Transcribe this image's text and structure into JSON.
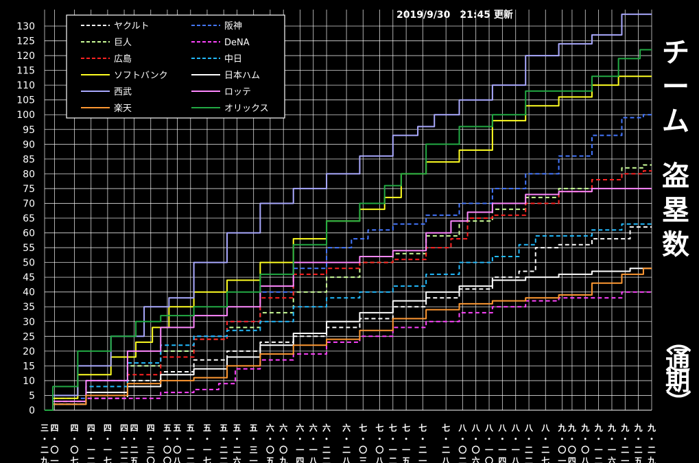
{
  "updated": "2019/9/30　21:45 更新",
  "title_chars": [
    "チ",
    "ー",
    "ム",
    "盗",
    "塁",
    "数"
  ],
  "subtitle_chars": [
    "（",
    "通",
    "期",
    "）"
  ],
  "colors": {
    "background": "#000000",
    "grid": "#ffffff",
    "axis": "#ffffff"
  },
  "chart_data": {
    "type": "line",
    "ylim": [
      0,
      130
    ],
    "yticks": [
      0,
      5,
      10,
      15,
      20,
      25,
      30,
      35,
      40,
      45,
      50,
      55,
      60,
      65,
      70,
      75,
      80,
      85,
      90,
      95,
      100,
      105,
      110,
      115,
      120,
      125,
      130
    ],
    "xlim": [
      0,
      183
    ],
    "xticks": [
      {
        "label": "三・二九",
        "x": 0
      },
      {
        "label": "四・〇一",
        "x": 3
      },
      {
        "label": "四・〇七",
        "x": 9
      },
      {
        "label": "四・一二",
        "x": 14
      },
      {
        "label": "四・一七",
        "x": 19
      },
      {
        "label": "四・二二",
        "x": 24
      },
      {
        "label": "四・二五",
        "x": 27
      },
      {
        "label": "四・三〇",
        "x": 32
      },
      {
        "label": "五・〇〇",
        "x": 37
      },
      {
        "label": "五・〇八",
        "x": 40
      },
      {
        "label": "五・一二",
        "x": 44
      },
      {
        "label": "五・一七",
        "x": 49
      },
      {
        "label": "五・二二",
        "x": 54
      },
      {
        "label": "五・二六",
        "x": 58
      },
      {
        "label": "五・三一",
        "x": 63
      },
      {
        "label": "六・〇五",
        "x": 68
      },
      {
        "label": "六・〇九",
        "x": 72
      },
      {
        "label": "六・一四",
        "x": 77
      },
      {
        "label": "六・一八",
        "x": 81
      },
      {
        "label": "六・二二",
        "x": 85
      },
      {
        "label": "六・二八",
        "x": 91
      },
      {
        "label": "七・〇三",
        "x": 96
      },
      {
        "label": "七・〇八",
        "x": 101
      },
      {
        "label": "七・一二",
        "x": 105
      },
      {
        "label": "七・一五",
        "x": 109
      },
      {
        "label": "七・二一",
        "x": 114
      },
      {
        "label": "七・二八",
        "x": 121
      },
      {
        "label": "八・〇二",
        "x": 126
      },
      {
        "label": "八・〇六",
        "x": 130
      },
      {
        "label": "八・一〇",
        "x": 134
      },
      {
        "label": "八・一四",
        "x": 138
      },
      {
        "label": "八・一八",
        "x": 142
      },
      {
        "label": "八・二二",
        "x": 146
      },
      {
        "label": "八・二七",
        "x": 151
      },
      {
        "label": "九・〇一",
        "x": 156
      },
      {
        "label": "九・〇四",
        "x": 159
      },
      {
        "label": "九・〇八",
        "x": 163
      },
      {
        "label": "九・一二",
        "x": 167
      },
      {
        "label": "九・一六",
        "x": 171
      },
      {
        "label": "九・二一",
        "x": 175
      },
      {
        "label": "九・二五",
        "x": 179
      },
      {
        "label": "九・二九",
        "x": 183
      }
    ],
    "legend_placement": "top-left",
    "series": [
      {
        "name": "ヤクルト",
        "color": "#ffffff",
        "dash": true,
        "points": [
          [
            0,
            0
          ],
          [
            5,
            2
          ],
          [
            20,
            4
          ],
          [
            30,
            10
          ],
          [
            40,
            13
          ],
          [
            50,
            17
          ],
          [
            60,
            20
          ],
          [
            70,
            23
          ],
          [
            80,
            25
          ],
          [
            90,
            28
          ],
          [
            100,
            31
          ],
          [
            110,
            35
          ],
          [
            120,
            38
          ],
          [
            130,
            41
          ],
          [
            140,
            45
          ],
          [
            146,
            47
          ],
          [
            150,
            55
          ],
          [
            160,
            56
          ],
          [
            170,
            58
          ],
          [
            183,
            62
          ]
        ]
      },
      {
        "name": "阪神",
        "color": "#4477ff",
        "dash": true,
        "points": [
          [
            0,
            0
          ],
          [
            5,
            4
          ],
          [
            20,
            10
          ],
          [
            30,
            15
          ],
          [
            40,
            20
          ],
          [
            50,
            25
          ],
          [
            60,
            30
          ],
          [
            70,
            40
          ],
          [
            80,
            48
          ],
          [
            90,
            55
          ],
          [
            95,
            58
          ],
          [
            100,
            61
          ],
          [
            110,
            63
          ],
          [
            120,
            66
          ],
          [
            130,
            70
          ],
          [
            140,
            75
          ],
          [
            150,
            80
          ],
          [
            160,
            86
          ],
          [
            170,
            93
          ],
          [
            178,
            99
          ],
          [
            183,
            100
          ]
        ]
      },
      {
        "name": "巨人",
        "color": "#ccff99",
        "dash": true,
        "points": [
          [
            0,
            0
          ],
          [
            5,
            3
          ],
          [
            20,
            8
          ],
          [
            30,
            15
          ],
          [
            40,
            20
          ],
          [
            50,
            24
          ],
          [
            60,
            28
          ],
          [
            70,
            33
          ],
          [
            80,
            40
          ],
          [
            90,
            45
          ],
          [
            100,
            50
          ],
          [
            110,
            53
          ],
          [
            120,
            59
          ],
          [
            130,
            64
          ],
          [
            140,
            68
          ],
          [
            150,
            72
          ],
          [
            160,
            75
          ],
          [
            170,
            78
          ],
          [
            178,
            82
          ],
          [
            183,
            83
          ]
        ]
      },
      {
        "name": "DeNA",
        "color": "#ff44ff",
        "dash": true,
        "points": [
          [
            0,
            0
          ],
          [
            5,
            2
          ],
          [
            20,
            4
          ],
          [
            30,
            4
          ],
          [
            40,
            6
          ],
          [
            50,
            7
          ],
          [
            55,
            9
          ],
          [
            60,
            14
          ],
          [
            70,
            17
          ],
          [
            80,
            19
          ],
          [
            90,
            23
          ],
          [
            100,
            25
          ],
          [
            110,
            28
          ],
          [
            120,
            30
          ],
          [
            130,
            33
          ],
          [
            140,
            35
          ],
          [
            150,
            37
          ],
          [
            160,
            38
          ],
          [
            170,
            38
          ],
          [
            178,
            40
          ],
          [
            183,
            40
          ]
        ]
      },
      {
        "name": "広島",
        "color": "#ff2222",
        "dash": true,
        "points": [
          [
            0,
            0
          ],
          [
            5,
            3
          ],
          [
            20,
            8
          ],
          [
            30,
            12
          ],
          [
            40,
            18
          ],
          [
            50,
            24
          ],
          [
            60,
            30
          ],
          [
            70,
            38
          ],
          [
            80,
            46
          ],
          [
            90,
            48
          ],
          [
            100,
            50
          ],
          [
            110,
            51
          ],
          [
            120,
            55
          ],
          [
            125,
            58
          ],
          [
            130,
            65
          ],
          [
            140,
            66
          ],
          [
            150,
            70
          ],
          [
            160,
            74
          ],
          [
            170,
            78
          ],
          [
            178,
            80
          ],
          [
            183,
            81
          ]
        ]
      },
      {
        "name": "中日",
        "color": "#22bbff",
        "dash": true,
        "points": [
          [
            0,
            0
          ],
          [
            5,
            2
          ],
          [
            20,
            8
          ],
          [
            30,
            16
          ],
          [
            40,
            22
          ],
          [
            50,
            25
          ],
          [
            60,
            27
          ],
          [
            70,
            30
          ],
          [
            80,
            35
          ],
          [
            90,
            38
          ],
          [
            100,
            40
          ],
          [
            110,
            42
          ],
          [
            120,
            46
          ],
          [
            130,
            50
          ],
          [
            140,
            52
          ],
          [
            146,
            56
          ],
          [
            150,
            59
          ],
          [
            160,
            59
          ],
          [
            170,
            61
          ],
          [
            178,
            63
          ],
          [
            183,
            63
          ]
        ]
      },
      {
        "name": "ソフトバンク",
        "color": "#ffff22",
        "dash": false,
        "points": [
          [
            0,
            0
          ],
          [
            5,
            4
          ],
          [
            15,
            12
          ],
          [
            25,
            18
          ],
          [
            30,
            23
          ],
          [
            35,
            28
          ],
          [
            40,
            35
          ],
          [
            50,
            40
          ],
          [
            60,
            44
          ],
          [
            70,
            50
          ],
          [
            80,
            58
          ],
          [
            90,
            64
          ],
          [
            100,
            68
          ],
          [
            105,
            72
          ],
          [
            110,
            80
          ],
          [
            120,
            84
          ],
          [
            130,
            88
          ],
          [
            140,
            98
          ],
          [
            150,
            103
          ],
          [
            160,
            106
          ],
          [
            170,
            110
          ],
          [
            176,
            113
          ],
          [
            183,
            113
          ]
        ]
      },
      {
        "name": "日本ハム",
        "color": "#ffffff",
        "dash": false,
        "points": [
          [
            0,
            0
          ],
          [
            5,
            2
          ],
          [
            20,
            6
          ],
          [
            30,
            8
          ],
          [
            40,
            12
          ],
          [
            50,
            14
          ],
          [
            60,
            18
          ],
          [
            70,
            22
          ],
          [
            80,
            26
          ],
          [
            90,
            30
          ],
          [
            100,
            33
          ],
          [
            110,
            37
          ],
          [
            120,
            40
          ],
          [
            130,
            42
          ],
          [
            140,
            44
          ],
          [
            150,
            45
          ],
          [
            160,
            46
          ],
          [
            170,
            47
          ],
          [
            183,
            48
          ]
        ]
      },
      {
        "name": "西武",
        "color": "#aaaaff",
        "dash": false,
        "points": [
          [
            0,
            0
          ],
          [
            5,
            5
          ],
          [
            15,
            15
          ],
          [
            25,
            25
          ],
          [
            35,
            35
          ],
          [
            40,
            38
          ],
          [
            50,
            50
          ],
          [
            60,
            60
          ],
          [
            70,
            70
          ],
          [
            80,
            75
          ],
          [
            90,
            80
          ],
          [
            100,
            86
          ],
          [
            110,
            93
          ],
          [
            115,
            96
          ],
          [
            120,
            100
          ],
          [
            130,
            105
          ],
          [
            140,
            110
          ],
          [
            150,
            120
          ],
          [
            160,
            124
          ],
          [
            170,
            127
          ],
          [
            178,
            134
          ],
          [
            183,
            134
          ]
        ]
      },
      {
        "name": "ロッテ",
        "color": "#ff88ff",
        "dash": false,
        "points": [
          [
            0,
            0
          ],
          [
            5,
            3
          ],
          [
            20,
            10
          ],
          [
            30,
            20
          ],
          [
            40,
            28
          ],
          [
            50,
            32
          ],
          [
            60,
            35
          ],
          [
            70,
            42
          ],
          [
            80,
            50
          ],
          [
            90,
            50
          ],
          [
            100,
            52
          ],
          [
            110,
            54
          ],
          [
            120,
            60
          ],
          [
            125,
            64
          ],
          [
            130,
            67
          ],
          [
            140,
            70
          ],
          [
            150,
            73
          ],
          [
            160,
            74
          ],
          [
            170,
            75
          ],
          [
            183,
            75
          ]
        ]
      },
      {
        "name": "楽天",
        "color": "#ff9933",
        "dash": false,
        "points": [
          [
            0,
            0
          ],
          [
            5,
            2
          ],
          [
            20,
            5
          ],
          [
            30,
            9
          ],
          [
            40,
            10
          ],
          [
            50,
            11
          ],
          [
            60,
            15
          ],
          [
            70,
            19
          ],
          [
            80,
            22
          ],
          [
            90,
            24
          ],
          [
            100,
            27
          ],
          [
            110,
            31
          ],
          [
            120,
            34
          ],
          [
            130,
            36
          ],
          [
            140,
            37
          ],
          [
            150,
            38
          ],
          [
            160,
            39
          ],
          [
            170,
            43
          ],
          [
            178,
            46
          ],
          [
            183,
            48
          ]
        ]
      },
      {
        "name": "オリックス",
        "color": "#22aa44",
        "dash": false,
        "points": [
          [
            0,
            0
          ],
          [
            5,
            8
          ],
          [
            15,
            20
          ],
          [
            25,
            25
          ],
          [
            30,
            30
          ],
          [
            40,
            32
          ],
          [
            50,
            35
          ],
          [
            60,
            40
          ],
          [
            70,
            46
          ],
          [
            80,
            56
          ],
          [
            90,
            64
          ],
          [
            100,
            70
          ],
          [
            105,
            76
          ],
          [
            110,
            80
          ],
          [
            120,
            90
          ],
          [
            130,
            96
          ],
          [
            140,
            100
          ],
          [
            150,
            108
          ],
          [
            160,
            108
          ],
          [
            170,
            113
          ],
          [
            176,
            119
          ],
          [
            183,
            122
          ]
        ]
      }
    ]
  }
}
